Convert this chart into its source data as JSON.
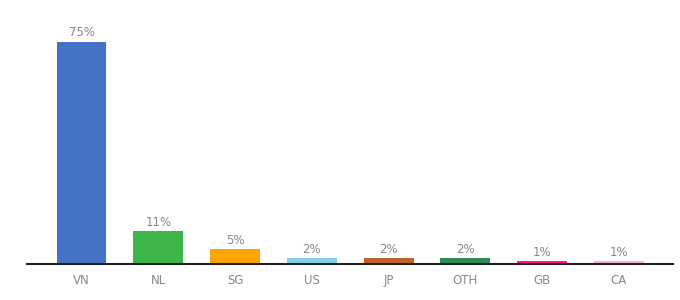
{
  "categories": [
    "VN",
    "NL",
    "SG",
    "US",
    "JP",
    "OTH",
    "GB",
    "CA"
  ],
  "values": [
    75,
    11,
    5,
    2,
    2,
    2,
    1,
    1
  ],
  "labels": [
    "75%",
    "11%",
    "5%",
    "2%",
    "2%",
    "2%",
    "1%",
    "1%"
  ],
  "bar_colors": [
    "#4472C4",
    "#3CB54A",
    "#FFA500",
    "#87CEEB",
    "#C0622B",
    "#2E8B57",
    "#FF1493",
    "#FFB6C1"
  ],
  "background_color": "#ffffff",
  "ylim": [
    0,
    82
  ],
  "label_fontsize": 8.5,
  "tick_fontsize": 8.5,
  "label_color": "#888888",
  "tick_color": "#888888"
}
